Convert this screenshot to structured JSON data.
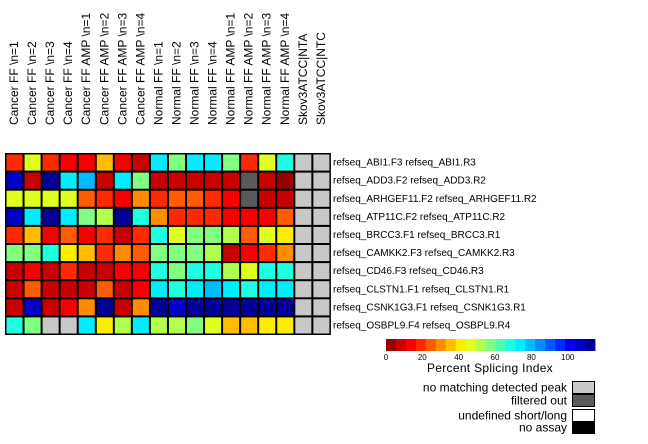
{
  "chart_data": {
    "type": "heatmap",
    "title": "",
    "columns": [
      "Cancer FF \\n=1",
      "Cancer FF \\n=2",
      "Cancer FF \\n=3",
      "Cancer FF \\n=4",
      "Cancer FF AMP \\n=1",
      "Cancer FF AMP \\n=2",
      "Cancer FF AMP \\n=3",
      "Cancer FF AMP \\n=4",
      "Normal FF \\n=1",
      "Normal FF \\n=2",
      "Normal FF \\n=3",
      "Normal FF \\n=4",
      "Normal FF AMP \\n=1",
      "Normal FF AMP \\n=2",
      "Normal FF AMP \\n=3",
      "Normal FF AMP \\n=4",
      "Skov3ATCC|NTA",
      "Skov3ATCC|NTC"
    ],
    "rows": [
      "refseq_ABI1.F3  refseq_ABI1.R3",
      "refseq_ADD3.F2  refseq_ADD3.R2",
      "refseq_ARHGEF11.F2  refseq_ARHGEF11.R2",
      "refseq_ATP11C.F2  refseq_ATP11C.R2",
      "refseq_BRCC3.F1  refseq_BRCC3.R1",
      "refseq_CAMKK2.F3  refseq_CAMKK2.R3",
      "refseq_CD46.F3  refseq_CD46.R3",
      "refseq_CLSTN1.F1  refseq_CLSTN1.R1",
      "refseq_CSNK1G3.F1  refseq_CSNK1G3.R1",
      "refseq_OSBPL9.F4  refseq_OSBPL9.R4"
    ],
    "values": [
      [
        20,
        47,
        20,
        14,
        14,
        36,
        15,
        10,
        76,
        58,
        73,
        73,
        58,
        20,
        47,
        66,
        "NM",
        "NM"
      ],
      [
        106,
        8,
        112,
        73,
        82,
        8,
        76,
        56,
        6,
        6,
        6,
        6,
        6,
        "FO",
        6,
        5,
        "NM",
        "NM"
      ],
      [
        47,
        47,
        47,
        48,
        24,
        20,
        14,
        32,
        20,
        24,
        24,
        20,
        14,
        "FO",
        8,
        6,
        "NM",
        "NM"
      ],
      [
        106,
        73,
        115,
        76,
        56,
        50,
        115,
        68,
        32,
        20,
        20,
        20,
        14,
        14,
        14,
        24,
        "NM",
        "NM"
      ],
      [
        20,
        36,
        14,
        24,
        14,
        20,
        10,
        20,
        70,
        47,
        56,
        56,
        50,
        24,
        47,
        40,
        "NM",
        "NM"
      ],
      [
        56,
        56,
        66,
        40,
        36,
        20,
        32,
        24,
        58,
        58,
        58,
        50,
        6,
        14,
        20,
        32,
        "NM",
        "NM"
      ],
      [
        10,
        14,
        10,
        18,
        10,
        10,
        12,
        14,
        66,
        58,
        66,
        70,
        50,
        47,
        66,
        70,
        "NM",
        "NM"
      ],
      [
        6,
        24,
        6,
        10,
        6,
        24,
        6,
        14,
        74,
        66,
        74,
        78,
        74,
        66,
        74,
        74,
        "NM",
        "NM"
      ],
      [
        10,
        106,
        10,
        14,
        32,
        115,
        10,
        32,
        115,
        106,
        115,
        115,
        115,
        115,
        115,
        115,
        "NM",
        "NM"
      ],
      [
        70,
        56,
        "NM",
        "NM",
        74,
        40,
        50,
        74,
        50,
        50,
        58,
        44,
        36,
        36,
        40,
        40,
        "NM",
        "NM"
      ]
    ],
    "colorbar": {
      "title": "Percent Splicing Index",
      "range": [
        0,
        115
      ],
      "ticks": [
        0,
        20,
        40,
        60,
        80,
        100
      ],
      "steps": 21,
      "colormap": "jet-reversed"
    },
    "special_legend": [
      {
        "code": "NM",
        "label": "no matching detected peak",
        "color": "#c8c8c8"
      },
      {
        "code": "FO",
        "label": "filtered out",
        "color": "#5a5a5a"
      },
      {
        "code": "UD",
        "label": "undefined short/long",
        "color": "#ffffff"
      },
      {
        "code": "NA",
        "label": "no assay",
        "color": "#000000"
      }
    ],
    "xlabel": "",
    "ylabel": ""
  }
}
